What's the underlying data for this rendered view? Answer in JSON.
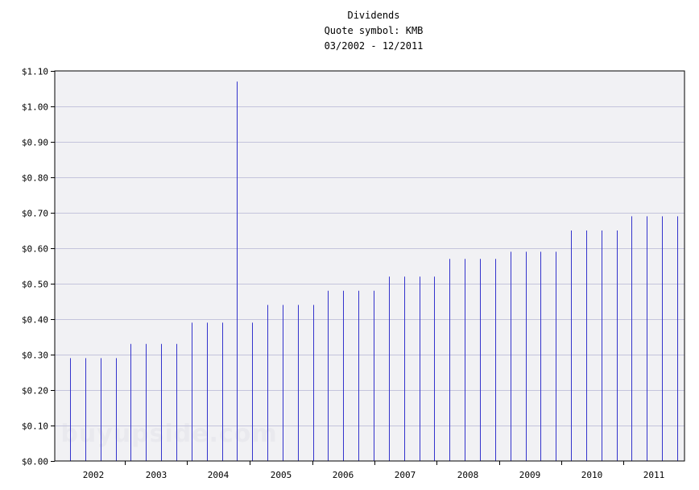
{
  "chart_data": {
    "type": "bar",
    "title_lines": [
      "Dividends",
      "Quote symbol: KMB",
      "03/2002 - 12/2011"
    ],
    "xlabel": "",
    "ylabel": "",
    "ylim": [
      0,
      1.1
    ],
    "y_ticks": [
      0,
      0.1,
      0.2,
      0.3,
      0.4,
      0.5,
      0.6,
      0.7,
      0.8,
      0.9,
      1.0,
      1.1
    ],
    "y_tick_labels": [
      "$0.00",
      "$0.10",
      "$0.20",
      "$0.30",
      "$0.40",
      "$0.50",
      "$0.60",
      "$0.70",
      "$0.80",
      "$0.90",
      "$1.00",
      "$1.10"
    ],
    "x_tick_labels": [
      "2002",
      "2003",
      "2004",
      "2005",
      "2006",
      "2007",
      "2008",
      "2009",
      "2010",
      "2011"
    ],
    "grid": true,
    "bar_color": "#3333cc",
    "plot_background": "#f1f1f4",
    "gridline_color": "#c4c4dc",
    "values": [
      0.29,
      0.29,
      0.29,
      0.29,
      0.33,
      0.33,
      0.33,
      0.33,
      0.39,
      0.39,
      0.39,
      1.07,
      0.39,
      0.44,
      0.44,
      0.44,
      0.44,
      0.48,
      0.48,
      0.48,
      0.48,
      0.52,
      0.52,
      0.52,
      0.52,
      0.57,
      0.57,
      0.57,
      0.57,
      0.59,
      0.59,
      0.59,
      0.59,
      0.65,
      0.65,
      0.65,
      0.65,
      0.69,
      0.69,
      0.69,
      0.69
    ],
    "watermark": "buyupside.com"
  }
}
